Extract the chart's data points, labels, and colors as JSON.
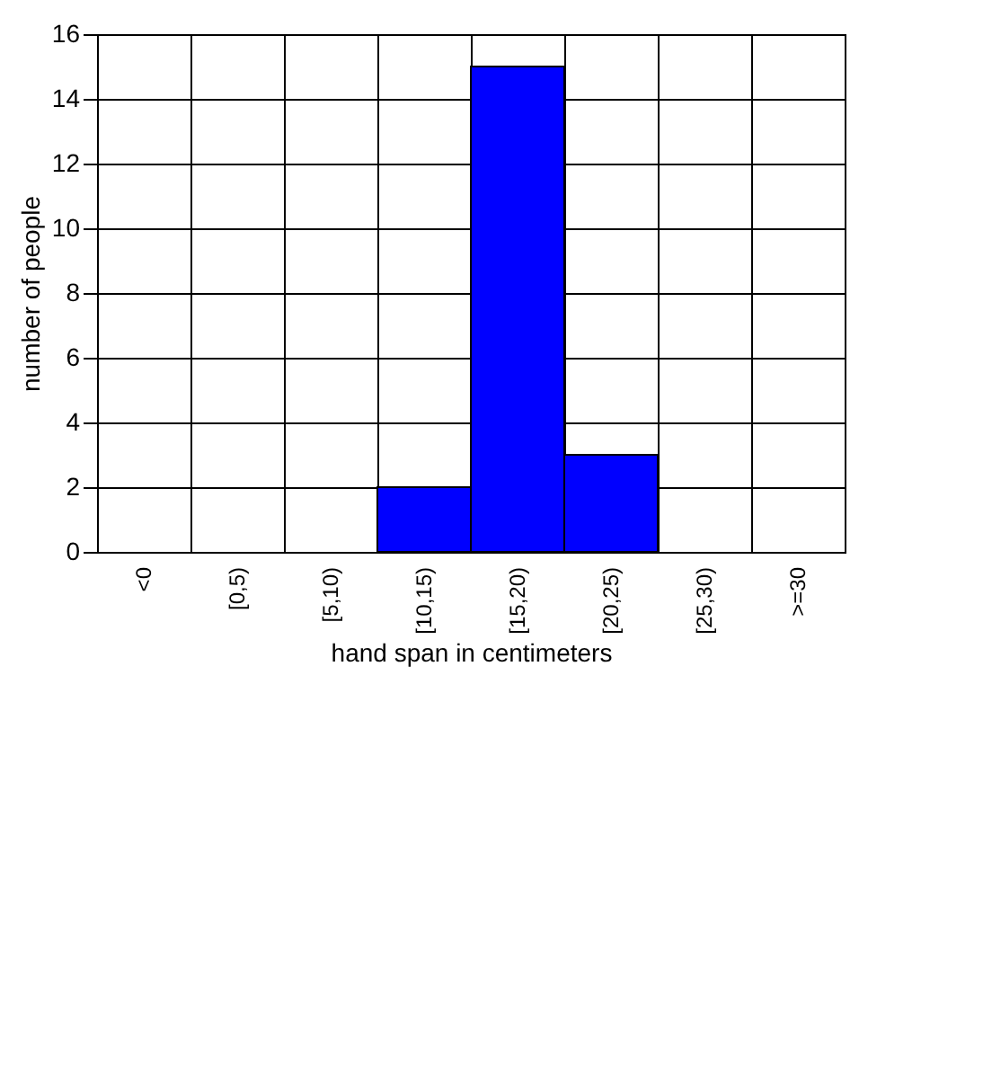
{
  "chart_data": {
    "type": "bar",
    "xlabel": "hand span in centimeters",
    "ylabel": "number of people",
    "categories": [
      "<0",
      "[0,5)",
      "[5,10)",
      "[10,15)",
      "[15,20)",
      "[20,25)",
      "[25,30)",
      ">=30"
    ],
    "values": [
      0,
      0,
      0,
      2,
      15,
      3,
      0,
      0
    ],
    "color": "#0000ff",
    "ylim": [
      0,
      16
    ],
    "yticks": [
      0,
      2,
      4,
      6,
      8,
      10,
      12,
      14,
      16
    ],
    "grid": true
  }
}
